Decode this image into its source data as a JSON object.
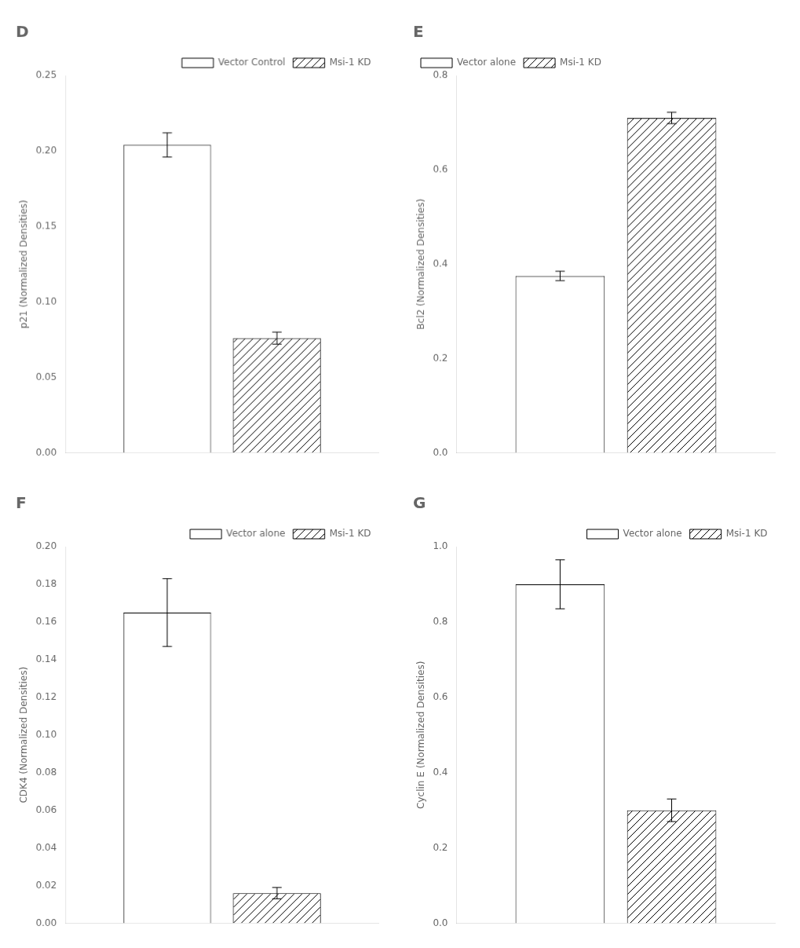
{
  "chart_data": [
    {
      "type": "bar",
      "title": "D",
      "ylabel": "p21 (Normalized Densities)",
      "categories": [
        null
      ],
      "series": [
        {
          "name": "Vector Control",
          "values": [
            0.204
          ],
          "errors": [
            0.008
          ]
        },
        {
          "name": "Msi-1 KD",
          "values": [
            0.076
          ],
          "errors": [
            0.004
          ]
        }
      ],
      "color": "#000000",
      "ylim": [
        0.0,
        0.25
      ],
      "yticks": [
        {
          "value": 0.0,
          "label": "0.00"
        },
        0.05,
        {
          "value": 0.1,
          "label": "0.10"
        },
        0.15,
        {
          "value": 0.2,
          "label": "0.20"
        },
        0.25
      ],
      "grid": false,
      "legend": "upper right",
      "tick_labels": "y"
    },
    {
      "type": "bar",
      "title": "E",
      "ylabel": "Bcl2 (Normalized Densities)",
      "categories": [
        null
      ],
      "series": [
        {
          "name": "Vector alone",
          "values": [
            0.375
          ],
          "errors": [
            0.01
          ]
        },
        {
          "name": "Msi-1 KD",
          "values": [
            0.71
          ],
          "errors": [
            0.012
          ]
        }
      ],
      "color": "#000000",
      "ylim": [
        0.0,
        0.8
      ],
      "yticks": [
        {
          "value": 0.0,
          "label": "0.0"
        },
        0.2,
        0.4,
        0.6,
        0.8
      ],
      "grid": false,
      "legend": "upper left",
      "tick_labels": "y"
    },
    {
      "type": "bar",
      "title": "F",
      "ylabel": "CDK4 (Normalized Densities)",
      "categories": [
        null
      ],
      "series": [
        {
          "name": "Vector alone",
          "values": [
            0.165
          ],
          "errors": [
            0.018
          ]
        },
        {
          "name": "Msi-1 KD",
          "values": [
            0.016
          ],
          "errors": [
            0.003
          ]
        }
      ],
      "color": "#000000",
      "ylim": [
        0.0,
        0.2
      ],
      "yticks": [
        {
          "value": 0.0,
          "label": "0.00"
        },
        0.02,
        0.04,
        0.06,
        0.08,
        {
          "value": 0.1,
          "label": "0.10"
        },
        0.12,
        0.14,
        0.16,
        0.18,
        {
          "value": 0.2,
          "label": "0.20"
        }
      ],
      "grid": false,
      "legend": "upper right",
      "tick_labels": "y"
    },
    {
      "type": "bar",
      "title": "G",
      "ylabel": "Cyclin E (Normalized Densities)",
      "categories": [
        null
      ],
      "series": [
        {
          "name": "Vector alone",
          "values": [
            0.9
          ],
          "errors": [
            0.065
          ]
        },
        {
          "name": "Msi-1 KD",
          "values": [
            0.3
          ],
          "errors": [
            0.03
          ]
        }
      ],
      "color": "#000000",
      "ylim": [
        0.0,
        1.0
      ],
      "yticks": [
        {
          "value": 0.0,
          "label": "0.0"
        },
        0.2,
        0.4,
        0.6,
        0.8,
        {
          "value": 1.0,
          "label": "1.0"
        }
      ],
      "grid": false,
      "legend": "upper right",
      "tick_labels": "y"
    }
  ]
}
